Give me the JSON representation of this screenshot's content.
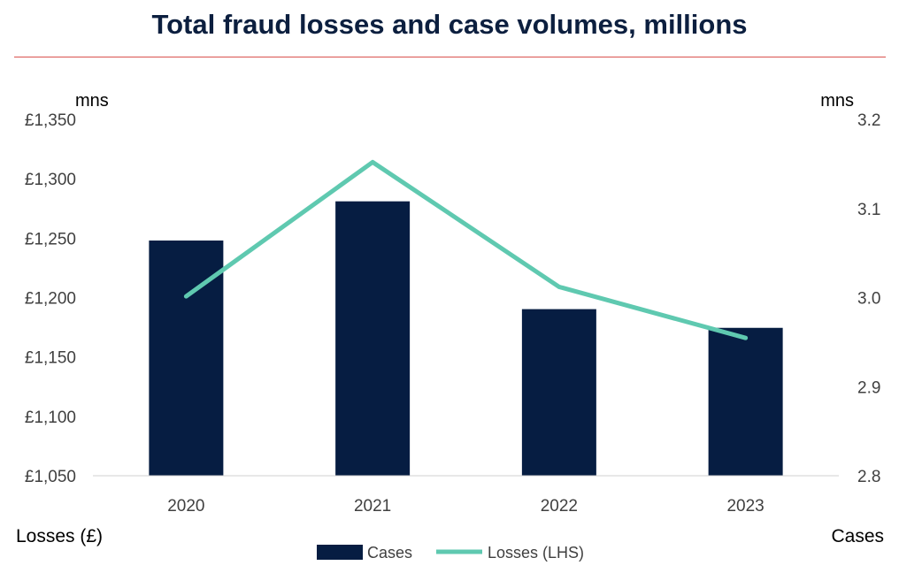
{
  "title": "Total fraud losses and case volumes, millions",
  "left_unit": "mns",
  "right_unit": "mns",
  "left_axis_title": "Losses (£)",
  "right_axis_title": "Cases",
  "colors": {
    "bar": "#061d42",
    "line": "#5fc9b0",
    "title": "#0c1f3f",
    "rule": "#d9534f"
  },
  "chart_data": {
    "type": "bar",
    "categories": [
      "2020",
      "2021",
      "2022",
      "2023"
    ],
    "series": [
      {
        "name": "Cases",
        "type": "bar",
        "axis": "right",
        "values": [
          3.064,
          3.108,
          2.987,
          2.966
        ]
      },
      {
        "name": "Losses (LHS)",
        "type": "line",
        "axis": "left",
        "values": [
          1201,
          1314,
          1209,
          1166
        ]
      }
    ],
    "y_left": {
      "min": 1050,
      "max": 1350,
      "ticks": [
        "£1,050",
        "£1,100",
        "£1,150",
        "£1,200",
        "£1,250",
        "£1,300",
        "£1,350"
      ]
    },
    "y_right": {
      "min": 2.8,
      "max": 3.2,
      "ticks": [
        "2.8",
        "2.9",
        "3.0",
        "3.1",
        "3.2"
      ]
    },
    "legend": [
      "Cases",
      "Losses (LHS)"
    ],
    "grid": false,
    "legend_position": "bottom"
  }
}
